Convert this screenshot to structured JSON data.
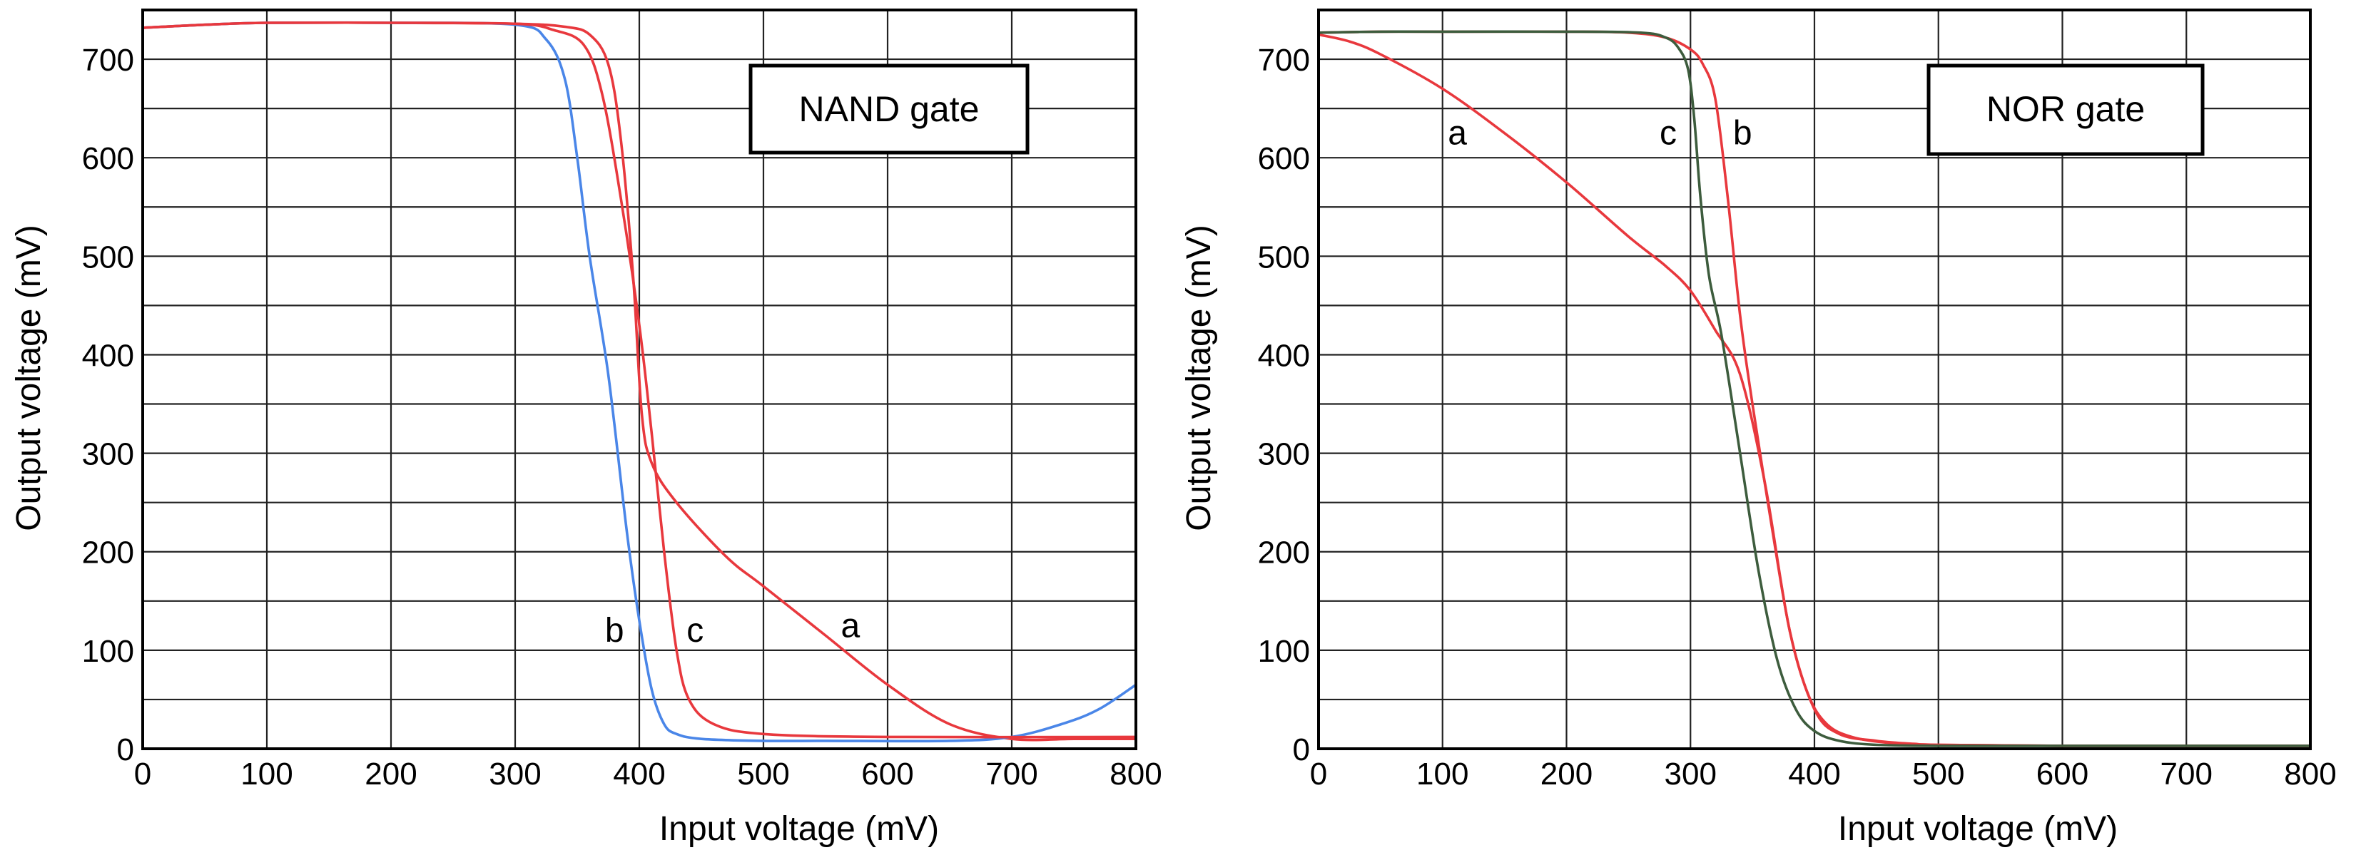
{
  "chart_data": [
    {
      "type": "line",
      "title": "NAND gate",
      "xlabel": "Input voltage (mV)",
      "ylabel": "Output voltage (mV)",
      "xlim": [
        0,
        800
      ],
      "ylim": [
        0,
        750
      ],
      "x_ticks": [
        0,
        100,
        200,
        300,
        400,
        500,
        600,
        700,
        800
      ],
      "y_ticks": [
        0,
        100,
        200,
        300,
        400,
        500,
        600,
        700
      ],
      "grid": true,
      "series": [
        {
          "name": "a",
          "color": "#e8383d",
          "x": [
            0,
            50,
            100,
            200,
            300,
            340,
            360,
            375,
            385,
            395,
            402,
            410,
            430,
            470,
            500,
            550,
            600,
            650,
            700,
            750,
            800
          ],
          "y": [
            732,
            735,
            737,
            737,
            736,
            733,
            725,
            695,
            620,
            480,
            340,
            290,
            250,
            195,
            165,
            115,
            65,
            25,
            10,
            10,
            10
          ]
        },
        {
          "name": "b",
          "color": "#4a86e8",
          "x": [
            0,
            50,
            100,
            200,
            300,
            325,
            340,
            350,
            360,
            375,
            390,
            400,
            410,
            420,
            430,
            450,
            500,
            550,
            650,
            700,
            740,
            770,
            800
          ],
          "y": [
            732,
            735,
            737,
            737,
            735,
            720,
            680,
            600,
            500,
            380,
            220,
            130,
            60,
            25,
            15,
            10,
            8,
            8,
            8,
            12,
            25,
            40,
            65
          ]
        },
        {
          "name": "c",
          "color": "#e8383d",
          "x": [
            0,
            50,
            100,
            200,
            300,
            330,
            355,
            370,
            385,
            400,
            410,
            420,
            430,
            440,
            460,
            500,
            600,
            800
          ],
          "y": [
            732,
            735,
            737,
            737,
            736,
            730,
            715,
            665,
            560,
            430,
            320,
            200,
            100,
            50,
            25,
            15,
            12,
            12
          ]
        }
      ],
      "annotations": [
        {
          "text": "b",
          "x": 380,
          "y": 120
        },
        {
          "text": "c",
          "x": 445,
          "y": 120
        },
        {
          "text": "a",
          "x": 570,
          "y": 125
        }
      ]
    },
    {
      "type": "line",
      "title": "NOR gate",
      "xlabel": "Input voltage (mV)",
      "ylabel": "Output voltage (mV)",
      "xlim": [
        0,
        800
      ],
      "ylim": [
        0,
        750
      ],
      "x_ticks": [
        0,
        100,
        200,
        300,
        400,
        500,
        600,
        700,
        800
      ],
      "y_ticks": [
        0,
        100,
        200,
        300,
        400,
        500,
        600,
        700
      ],
      "grid": true,
      "series": [
        {
          "name": "a",
          "color": "#e8383d",
          "x": [
            0,
            25,
            50,
            100,
            150,
            200,
            250,
            280,
            300,
            320,
            340,
            360,
            380,
            400,
            420,
            450,
            480,
            500,
            600,
            700,
            800
          ],
          "y": [
            725,
            718,
            705,
            670,
            625,
            575,
            520,
            490,
            465,
            425,
            380,
            270,
            120,
            40,
            15,
            8,
            5,
            4,
            3,
            3,
            3
          ]
        },
        {
          "name": "b",
          "color": "#e8383d",
          "x": [
            0,
            50,
            100,
            200,
            250,
            280,
            300,
            310,
            320,
            330,
            340,
            350,
            365,
            380,
            395,
            410,
            430,
            460,
            500,
            600,
            800
          ],
          "y": [
            727,
            728,
            728,
            728,
            727,
            722,
            710,
            695,
            660,
            560,
            440,
            350,
            230,
            120,
            55,
            25,
            12,
            6,
            4,
            3,
            3
          ]
        },
        {
          "name": "c",
          "color": "#3d5c3d",
          "x": [
            0,
            50,
            100,
            200,
            260,
            280,
            290,
            298,
            303,
            308,
            315,
            325,
            340,
            355,
            370,
            385,
            400,
            420,
            450,
            500,
            600,
            800
          ],
          "y": [
            727,
            728,
            728,
            728,
            727,
            722,
            712,
            690,
            640,
            560,
            480,
            420,
            300,
            180,
            90,
            40,
            18,
            8,
            4,
            3,
            3,
            3
          ]
        }
      ],
      "annotations": [
        {
          "text": "a",
          "x": 112,
          "y": 625
        },
        {
          "text": "c",
          "x": 282,
          "y": 625
        },
        {
          "text": "b",
          "x": 342,
          "y": 625
        }
      ]
    }
  ]
}
